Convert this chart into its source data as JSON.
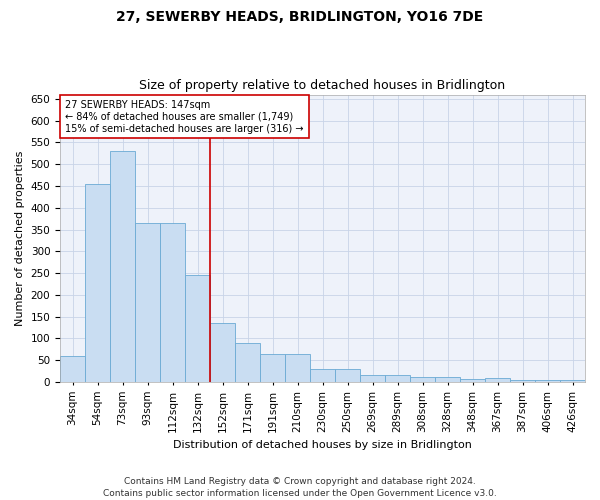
{
  "title": "27, SEWERBY HEADS, BRIDLINGTON, YO16 7DE",
  "subtitle": "Size of property relative to detached houses in Bridlington",
  "xlabel": "Distribution of detached houses by size in Bridlington",
  "ylabel": "Number of detached properties",
  "categories": [
    "34sqm",
    "54sqm",
    "73sqm",
    "93sqm",
    "112sqm",
    "132sqm",
    "152sqm",
    "171sqm",
    "191sqm",
    "210sqm",
    "230sqm",
    "250sqm",
    "269sqm",
    "289sqm",
    "308sqm",
    "328sqm",
    "348sqm",
    "367sqm",
    "387sqm",
    "406sqm",
    "426sqm"
  ],
  "values": [
    60,
    455,
    530,
    365,
    365,
    245,
    135,
    90,
    65,
    65,
    30,
    30,
    15,
    15,
    12,
    12,
    7,
    10,
    5,
    5,
    5
  ],
  "bar_color": "#c9ddf2",
  "bar_edge_color": "#6aaad4",
  "vline_index": 6,
  "vline_color": "#cc0000",
  "annotation_text": "27 SEWERBY HEADS: 147sqm\n← 84% of detached houses are smaller (1,749)\n15% of semi-detached houses are larger (316) →",
  "annotation_box_color": "#ffffff",
  "annotation_box_edge": "#cc0000",
  "ylim": [
    0,
    660
  ],
  "yticks": [
    0,
    50,
    100,
    150,
    200,
    250,
    300,
    350,
    400,
    450,
    500,
    550,
    600,
    650
  ],
  "footer": "Contains HM Land Registry data © Crown copyright and database right 2024.\nContains public sector information licensed under the Open Government Licence v3.0.",
  "bg_color": "#ffffff",
  "plot_bg_color": "#eef2fa",
  "title_fontsize": 10,
  "subtitle_fontsize": 9,
  "axis_label_fontsize": 8,
  "tick_fontsize": 7.5,
  "annotation_fontsize": 7,
  "footer_fontsize": 6.5
}
